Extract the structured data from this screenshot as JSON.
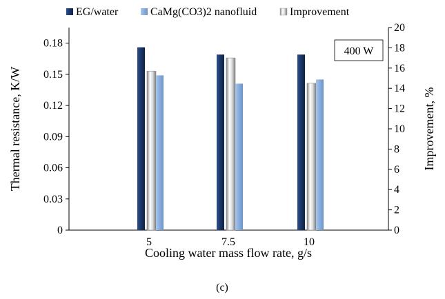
{
  "chart_data": {
    "type": "bar",
    "categories": [
      "5",
      "7.5",
      "10"
    ],
    "series": [
      {
        "name": "EG/water",
        "axis": "left",
        "color": "#1f3d73",
        "values": [
          0.176,
          0.169,
          0.169
        ]
      },
      {
        "name": "CaMg(CO3)2 nanofluid",
        "axis": "left",
        "color": "#8fb3e0",
        "values": [
          0.149,
          0.141,
          0.145
        ]
      },
      {
        "name": "Improvement",
        "axis": "right",
        "color": "#c8c8c8",
        "values": [
          15.7,
          17.0,
          14.5
        ]
      }
    ],
    "xlabel": "Cooling water mass flow rate, g/s",
    "ylabel": "Thermal resistance, K/W",
    "y2label": "Improvement, %",
    "ylim": [
      0,
      0.195
    ],
    "y2lim": [
      0,
      20
    ],
    "yticks": [
      "0",
      "0.03",
      "0.06",
      "0.09",
      "0.12",
      "0.15",
      "0.18"
    ],
    "y2ticks": [
      "0",
      "2",
      "4",
      "6",
      "8",
      "10",
      "12",
      "14",
      "16",
      "18",
      "20"
    ],
    "annotation": "400 W",
    "legend_position": "top",
    "grid": false
  },
  "caption": "(c)"
}
